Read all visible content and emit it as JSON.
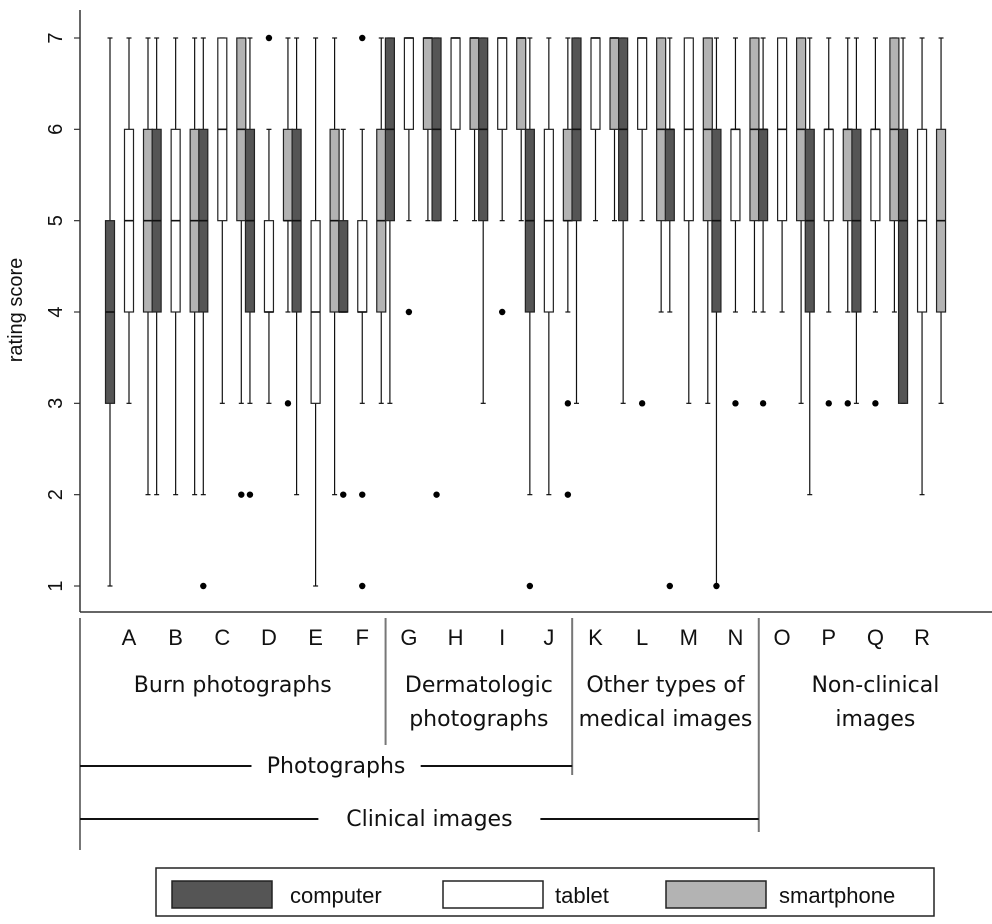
{
  "chart_data": {
    "type": "box",
    "ylabel": "rating score",
    "ylim": [
      0.5,
      7.3
    ],
    "yticks": [
      1,
      2,
      3,
      4,
      5,
      6,
      7
    ],
    "series_names": [
      "computer",
      "tablet",
      "smartphone"
    ],
    "colors": {
      "computer": "#555555",
      "tablet": "#ffffff",
      "smartphone": "#b3b3b3"
    },
    "categories": [
      "A",
      "B",
      "C",
      "D",
      "E",
      "F",
      "G",
      "H",
      "I",
      "J",
      "K",
      "L",
      "M",
      "N",
      "O",
      "P",
      "Q",
      "R"
    ],
    "boxes": {
      "A": [
        {
          "series": "computer",
          "q1": 3,
          "median": 4,
          "q3": 5,
          "wlo": 1,
          "whi": 7,
          "outliers": []
        },
        {
          "series": "tablet",
          "q1": 4,
          "median": 5,
          "q3": 6,
          "wlo": 3,
          "whi": 7,
          "outliers": []
        },
        {
          "series": "smartphone",
          "q1": 4,
          "median": 5,
          "q3": 6,
          "wlo": 2,
          "whi": 7,
          "outliers": []
        }
      ],
      "B": [
        {
          "series": "computer",
          "q1": 4,
          "median": 5,
          "q3": 6,
          "wlo": 2,
          "whi": 7,
          "outliers": []
        },
        {
          "series": "tablet",
          "q1": 4,
          "median": 5,
          "q3": 6,
          "wlo": 2,
          "whi": 7,
          "outliers": []
        },
        {
          "series": "smartphone",
          "q1": 4,
          "median": 5,
          "q3": 6,
          "wlo": 2,
          "whi": 7,
          "outliers": []
        }
      ],
      "C": [
        {
          "series": "computer",
          "q1": 4,
          "median": 5,
          "q3": 6,
          "wlo": 2,
          "whi": 7,
          "outliers": [
            1
          ]
        },
        {
          "series": "tablet",
          "q1": 5,
          "median": 6,
          "q3": 7,
          "wlo": 3,
          "whi": 7,
          "outliers": []
        },
        {
          "series": "smartphone",
          "q1": 5,
          "median": 6,
          "q3": 7,
          "wlo": 3,
          "whi": 7,
          "outliers": [
            2
          ]
        }
      ],
      "D": [
        {
          "series": "computer",
          "q1": 4,
          "median": 5,
          "q3": 6,
          "wlo": 3,
          "whi": 7,
          "outliers": [
            2
          ]
        },
        {
          "series": "tablet",
          "q1": 4,
          "median": 4,
          "q3": 5,
          "wlo": 3,
          "whi": 6,
          "outliers": [
            7
          ]
        },
        {
          "series": "smartphone",
          "q1": 5,
          "median": 5,
          "q3": 6,
          "wlo": 4,
          "whi": 7,
          "outliers": [
            3
          ]
        }
      ],
      "E": [
        {
          "series": "computer",
          "q1": 4,
          "median": 5,
          "q3": 6,
          "wlo": 2,
          "whi": 7,
          "outliers": []
        },
        {
          "series": "tablet",
          "q1": 3,
          "median": 4,
          "q3": 5,
          "wlo": 1,
          "whi": 7,
          "outliers": []
        },
        {
          "series": "smartphone",
          "q1": 4,
          "median": 5,
          "q3": 6,
          "wlo": 2,
          "whi": 7,
          "outliers": []
        }
      ],
      "F": [
        {
          "series": "computer",
          "q1": 4,
          "median": 4,
          "q3": 5,
          "wlo": 4,
          "whi": 6,
          "outliers": [
            2
          ]
        },
        {
          "series": "tablet",
          "q1": 4,
          "median": 4,
          "q3": 5,
          "wlo": 3,
          "whi": 6,
          "outliers": [
            7,
            2,
            1
          ]
        },
        {
          "series": "smartphone",
          "q1": 4,
          "median": 5,
          "q3": 6,
          "wlo": 3,
          "whi": 7,
          "outliers": []
        }
      ],
      "G": [
        {
          "series": "computer",
          "q1": 5,
          "median": 6,
          "q3": 7,
          "wlo": 3,
          "whi": 7,
          "outliers": []
        },
        {
          "series": "tablet",
          "q1": 6,
          "median": 7,
          "q3": 7,
          "wlo": 5,
          "whi": 7,
          "outliers": [
            4
          ]
        },
        {
          "series": "smartphone",
          "q1": 6,
          "median": 7,
          "q3": 7,
          "wlo": 5,
          "whi": 7,
          "outliers": []
        }
      ],
      "H": [
        {
          "series": "computer",
          "q1": 5,
          "median": 6,
          "q3": 7,
          "wlo": 5,
          "whi": 7,
          "outliers": [
            2
          ]
        },
        {
          "series": "tablet",
          "q1": 6,
          "median": 7,
          "q3": 7,
          "wlo": 5,
          "whi": 7,
          "outliers": []
        },
        {
          "series": "smartphone",
          "q1": 6,
          "median": 7,
          "q3": 7,
          "wlo": 5,
          "whi": 7,
          "outliers": []
        }
      ],
      "I": [
        {
          "series": "computer",
          "q1": 5,
          "median": 6,
          "q3": 7,
          "wlo": 3,
          "whi": 7,
          "outliers": []
        },
        {
          "series": "tablet",
          "q1": 6,
          "median": 7,
          "q3": 7,
          "wlo": 5,
          "whi": 7,
          "outliers": [
            4
          ]
        },
        {
          "series": "smartphone",
          "q1": 6,
          "median": 7,
          "q3": 7,
          "wlo": 5,
          "whi": 7,
          "outliers": []
        }
      ],
      "J": [
        {
          "series": "computer",
          "q1": 4,
          "median": 5,
          "q3": 6,
          "wlo": 2,
          "whi": 7,
          "outliers": [
            1
          ]
        },
        {
          "series": "tablet",
          "q1": 4,
          "median": 5,
          "q3": 6,
          "wlo": 2,
          "whi": 7,
          "outliers": []
        },
        {
          "series": "smartphone",
          "q1": 5,
          "median": 5,
          "q3": 6,
          "wlo": 4,
          "whi": 7,
          "outliers": [
            3,
            2
          ]
        }
      ],
      "K": [
        {
          "series": "computer",
          "q1": 5,
          "median": 6,
          "q3": 7,
          "wlo": 3,
          "whi": 7,
          "outliers": []
        },
        {
          "series": "tablet",
          "q1": 6,
          "median": 7,
          "q3": 7,
          "wlo": 5,
          "whi": 7,
          "outliers": []
        },
        {
          "series": "smartphone",
          "q1": 6,
          "median": 7,
          "q3": 7,
          "wlo": 5,
          "whi": 7,
          "outliers": []
        }
      ],
      "L": [
        {
          "series": "computer",
          "q1": 5,
          "median": 6,
          "q3": 7,
          "wlo": 3,
          "whi": 7,
          "outliers": []
        },
        {
          "series": "tablet",
          "q1": 6,
          "median": 7,
          "q3": 7,
          "wlo": 5,
          "whi": 7,
          "outliers": [
            3
          ]
        },
        {
          "series": "smartphone",
          "q1": 5,
          "median": 6,
          "q3": 7,
          "wlo": 4,
          "whi": 7,
          "outliers": []
        }
      ],
      "M": [
        {
          "series": "computer",
          "q1": 5,
          "median": 6,
          "q3": 6,
          "wlo": 4,
          "whi": 7,
          "outliers": [
            1
          ]
        },
        {
          "series": "tablet",
          "q1": 5,
          "median": 6,
          "q3": 7,
          "wlo": 3,
          "whi": 7,
          "outliers": []
        },
        {
          "series": "smartphone",
          "q1": 5,
          "median": 6,
          "q3": 7,
          "wlo": 3,
          "whi": 7,
          "outliers": []
        }
      ],
      "N": [
        {
          "series": "computer",
          "q1": 4,
          "median": 5,
          "q3": 6,
          "wlo": 1,
          "whi": 7,
          "outliers": [
            1
          ]
        },
        {
          "series": "tablet",
          "q1": 5,
          "median": 6,
          "q3": 6,
          "wlo": 4,
          "whi": 7,
          "outliers": [
            3
          ]
        },
        {
          "series": "smartphone",
          "q1": 5,
          "median": 6,
          "q3": 7,
          "wlo": 4,
          "whi": 7,
          "outliers": []
        }
      ],
      "O": [
        {
          "series": "computer",
          "q1": 5,
          "median": 6,
          "q3": 6,
          "wlo": 4,
          "whi": 7,
          "outliers": [
            3
          ]
        },
        {
          "series": "tablet",
          "q1": 5,
          "median": 6,
          "q3": 7,
          "wlo": 4,
          "whi": 7,
          "outliers": []
        },
        {
          "series": "smartphone",
          "q1": 5,
          "median": 6,
          "q3": 7,
          "wlo": 3,
          "whi": 7,
          "outliers": []
        }
      ],
      "P": [
        {
          "series": "computer",
          "q1": 4,
          "median": 5,
          "q3": 6,
          "wlo": 2,
          "whi": 7,
          "outliers": []
        },
        {
          "series": "tablet",
          "q1": 5,
          "median": 6,
          "q3": 6,
          "wlo": 4,
          "whi": 7,
          "outliers": [
            3
          ]
        },
        {
          "series": "smartphone",
          "q1": 5,
          "median": 6,
          "q3": 6,
          "wlo": 4,
          "whi": 7,
          "outliers": [
            3
          ]
        }
      ],
      "Q": [
        {
          "series": "computer",
          "q1": 4,
          "median": 5,
          "q3": 6,
          "wlo": 3,
          "whi": 7,
          "outliers": []
        },
        {
          "series": "tablet",
          "q1": 5,
          "median": 6,
          "q3": 6,
          "wlo": 4,
          "whi": 7,
          "outliers": [
            3
          ]
        },
        {
          "series": "smartphone",
          "q1": 5,
          "median": 6,
          "q3": 7,
          "wlo": 4,
          "whi": 7,
          "outliers": []
        }
      ],
      "R": [
        {
          "series": "computer",
          "q1": 3,
          "median": 5,
          "q3": 6,
          "wlo": 3,
          "whi": 7,
          "outliers": []
        },
        {
          "series": "tablet",
          "q1": 4,
          "median": 5,
          "q3": 6,
          "wlo": 2,
          "whi": 7,
          "outliers": []
        },
        {
          "series": "smartphone",
          "q1": 4,
          "median": 5,
          "q3": 6,
          "wlo": 3,
          "whi": 7,
          "outliers": []
        }
      ]
    },
    "groups": [
      {
        "lines": [
          "Burn photographs"
        ],
        "categories": [
          "A",
          "B",
          "C",
          "D",
          "E",
          "F"
        ]
      },
      {
        "lines": [
          "Dermatologic",
          "photographs"
        ],
        "categories": [
          "G",
          "H",
          "I",
          "J"
        ]
      },
      {
        "lines": [
          "Other types of",
          "medical images"
        ],
        "categories": [
          "K",
          "L",
          "M",
          "N"
        ]
      },
      {
        "lines": [
          "Non-clinical",
          "images"
        ],
        "categories": [
          "O",
          "P",
          "Q",
          "R"
        ]
      }
    ],
    "brackets": [
      {
        "label": "Photographs",
        "categories": [
          "A",
          "B",
          "C",
          "D",
          "E",
          "F",
          "G",
          "H",
          "I",
          "J"
        ]
      },
      {
        "label": "Clinical images",
        "categories": [
          "A",
          "B",
          "C",
          "D",
          "E",
          "F",
          "G",
          "H",
          "I",
          "J",
          "K",
          "L",
          "M",
          "N"
        ]
      }
    ],
    "legend": {
      "position": "bottom",
      "entries": [
        "computer",
        "tablet",
        "smartphone"
      ]
    }
  }
}
